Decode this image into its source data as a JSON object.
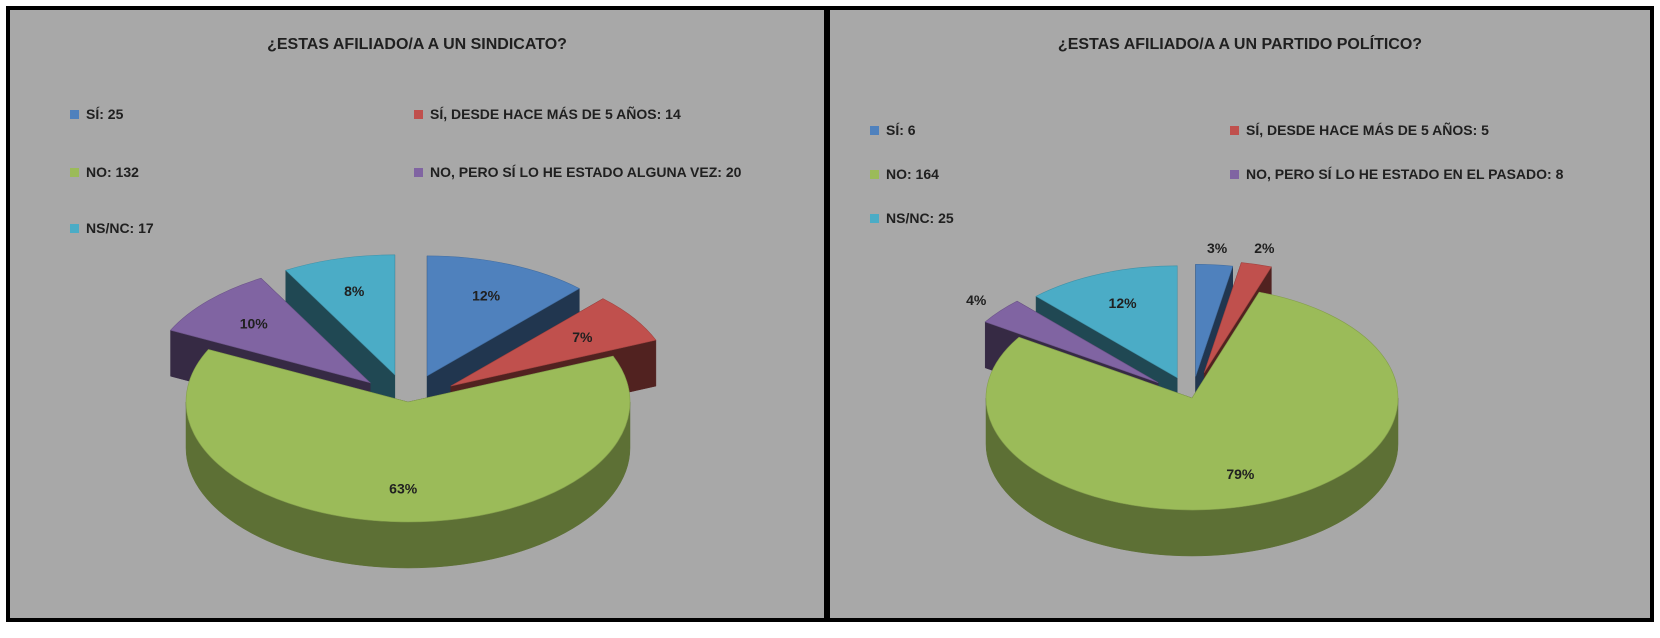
{
  "chart_data": [
    {
      "type": "pie",
      "title": "¿ESTAS AFILIADO/A A UN SINDICATO?",
      "legend_placement": "top",
      "slices": [
        {
          "legend": "SÍ: 25",
          "label": "SÍ",
          "value": 25,
          "pct_label": "12%",
          "color": "#4f81bd"
        },
        {
          "legend": "SÍ, DESDE HACE MÁS DE 5 AÑOS: 14",
          "label": "SÍ, DESDE HACE MÁS DE 5 AÑOS",
          "value": 14,
          "pct_label": "7%",
          "color": "#c0504d"
        },
        {
          "legend": "NO: 132",
          "label": "NO",
          "value": 132,
          "pct_label": "63%",
          "color": "#9bbb59"
        },
        {
          "legend": "NO, PERO SÍ LO HE ESTADO ALGUNA VEZ: 20",
          "label": "NO, PERO SÍ LO HE ESTADO ALGUNA VEZ",
          "value": 20,
          "pct_label": "10%",
          "color": "#8064a2"
        },
        {
          "legend": "NS/NC: 17",
          "label": "NS/NC",
          "value": 17,
          "pct_label": "8%",
          "color": "#4bacc6"
        }
      ]
    },
    {
      "type": "pie",
      "title": "¿ESTAS AFILIADO/A A UN PARTIDO POLÍTICO?",
      "legend_placement": "top",
      "slices": [
        {
          "legend": "SÍ: 6",
          "label": "SÍ",
          "value": 6,
          "pct_label": "3%",
          "color": "#4f81bd"
        },
        {
          "legend": "SÍ, DESDE HACE MÁS DE 5 AÑOS: 5",
          "label": "SÍ, DESDE HACE MÁS DE 5 AÑOS",
          "value": 5,
          "pct_label": "2%",
          "color": "#c0504d"
        },
        {
          "legend": "NO: 164",
          "label": "NO",
          "value": 164,
          "pct_label": "79%",
          "color": "#9bbb59"
        },
        {
          "legend": "NO, PERO SÍ LO HE ESTADO EN EL PASADO: 8",
          "label": "NO, PERO SÍ LO HE ESTADO EN EL PASADO",
          "value": 8,
          "pct_label": "4%",
          "color": "#8064a2"
        },
        {
          "legend": "NS/NC: 25",
          "label": "NS/NC",
          "value": 25,
          "pct_label": "12%",
          "color": "#4bacc6"
        }
      ]
    }
  ]
}
